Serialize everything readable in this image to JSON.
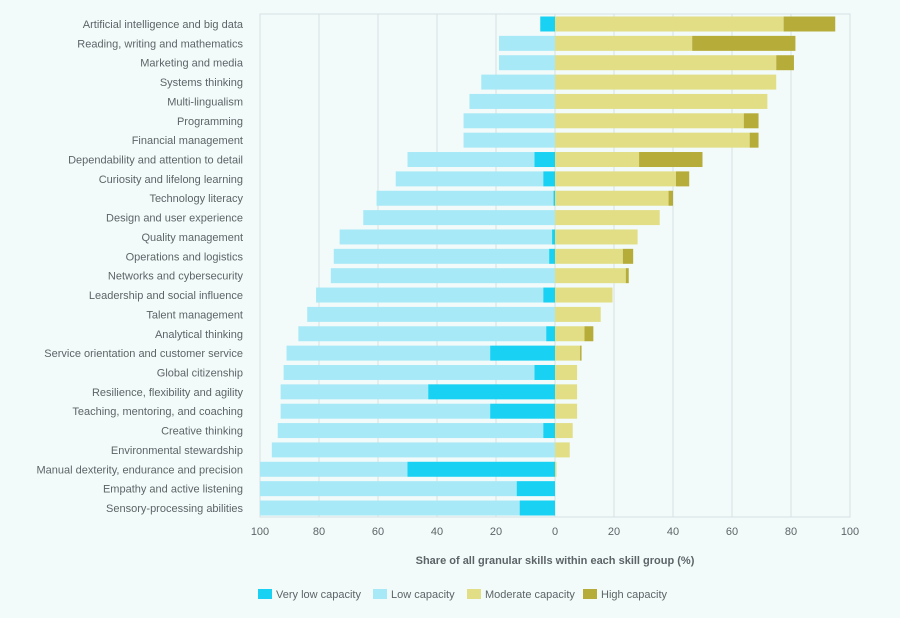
{
  "colors": {
    "very_low": "#19d1f2",
    "low": "#a8e9f7",
    "moderate": "#e1de86",
    "high": "#b6ac3a",
    "background": "#f3fbfa",
    "grid": "#d4e1e1",
    "text": "#5d6467"
  },
  "chart_data": {
    "type": "bar",
    "orientation": "horizontal",
    "stacked": "diverging",
    "xlabel": "Share of all granular skills within each skill group (%)",
    "xlim": [
      -100,
      100
    ],
    "x_ticks": [
      "100",
      "80",
      "60",
      "40",
      "20",
      "0",
      "20",
      "40",
      "60",
      "80",
      "100"
    ],
    "grid": true,
    "legend_position": "bottom",
    "categories": [
      "Artificial intelligence and big data",
      "Reading, writing and mathematics",
      "Marketing and media",
      "Systems thinking",
      "Multi-lingualism",
      "Programming",
      "Financial management",
      "Dependability and attention to detail",
      "Curiosity and lifelong learning",
      "Technology literacy",
      "Design and user experience",
      "Quality management",
      "Operations and logistics",
      "Networks and cybersecurity",
      "Leadership and social influence",
      "Talent management",
      "Analytical thinking",
      "Service orientation and customer service",
      "Global citizenship",
      "Resilience, flexibility and agility",
      "Teaching, mentoring, and coaching",
      "Creative thinking",
      "Environmental stewardship",
      "Manual dexterity, endurance and precision",
      "Empathy and active listening",
      "Sensory-processing abilities"
    ],
    "series": [
      {
        "name": "Very low capacity",
        "key": "very_low",
        "side": "left",
        "values": [
          5,
          0,
          0,
          0,
          0,
          0,
          0,
          7,
          4,
          0.5,
          0,
          1,
          2,
          0,
          4,
          0,
          3,
          22,
          7,
          43,
          22,
          4,
          0,
          50,
          13,
          12
        ]
      },
      {
        "name": "Low capacity",
        "key": "low",
        "side": "left",
        "values": [
          0,
          19,
          19,
          25,
          29,
          31,
          31,
          43,
          50,
          60,
          65,
          72,
          73,
          76,
          77,
          84,
          84,
          69,
          85,
          50,
          71,
          90,
          96,
          50,
          87,
          88
        ]
      },
      {
        "name": "Moderate capacity",
        "key": "moderate",
        "side": "right",
        "values": [
          77.5,
          46.5,
          75,
          75,
          72,
          64,
          66,
          28.5,
          41,
          38.5,
          35.5,
          28,
          23,
          24,
          19.5,
          15.5,
          10,
          8.5,
          7.5,
          7.5,
          7.5,
          6,
          5,
          0.5,
          0,
          0
        ]
      },
      {
        "name": "High capacity",
        "key": "high",
        "side": "right",
        "values": [
          17.5,
          35,
          6,
          0,
          0,
          5,
          3,
          21.5,
          4.5,
          1.5,
          0,
          0,
          3.5,
          1,
          0,
          0,
          3,
          0.5,
          0,
          0,
          0,
          0,
          0,
          0,
          0,
          0
        ]
      }
    ]
  }
}
